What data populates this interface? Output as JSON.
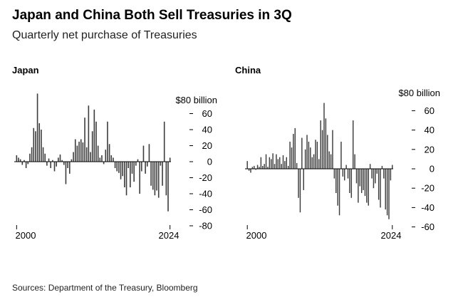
{
  "header": {
    "title": "Japan and China Both Sell Treasuries in 3Q",
    "subtitle": "Quarterly net purchase of Treasuries"
  },
  "footer": {
    "source": "Sources: Department of the Treasury, Bloomberg"
  },
  "colors": {
    "bar": "#3c3c3c",
    "zero_line": "#000000",
    "text": "#000000"
  },
  "chart_data": [
    {
      "type": "bar",
      "panel_title": "Japan",
      "unit_label": "$80 billion",
      "ylim": [
        -80,
        80
      ],
      "yticks": [
        60,
        40,
        20,
        0,
        -20,
        -40,
        -60,
        -80
      ],
      "xlabels": [
        "2000",
        "2024"
      ],
      "values": [
        8,
        5,
        3,
        -4,
        2,
        -8,
        -3,
        10,
        18,
        42,
        38,
        85,
        48,
        40,
        18,
        10,
        -5,
        4,
        -8,
        2,
        -12,
        -6,
        5,
        9,
        2,
        -4,
        -28,
        -8,
        -15,
        3,
        12,
        28,
        20,
        25,
        28,
        24,
        55,
        18,
        70,
        12,
        38,
        65,
        50,
        20,
        5,
        8,
        -3,
        15,
        50,
        22,
        8,
        5,
        -8,
        -12,
        -14,
        -22,
        -18,
        -32,
        -42,
        -8,
        -32,
        -15,
        -25,
        -5,
        3,
        -40,
        -12,
        20,
        -15,
        -6,
        22,
        -30,
        -35,
        -42,
        -36,
        -45,
        -5,
        -30,
        50,
        -42,
        -62,
        5
      ]
    },
    {
      "type": "bar",
      "panel_title": "China",
      "unit_label": "$80 billion",
      "ylim": [
        -60,
        70
      ],
      "yticks": [
        60,
        40,
        20,
        0,
        -20,
        -40,
        -60
      ],
      "xlabels": [
        "2000",
        "2024"
      ],
      "values": [
        8,
        -2,
        -4,
        2,
        3,
        -1,
        4,
        2,
        12,
        3,
        5,
        15,
        2,
        12,
        10,
        16,
        5,
        15,
        10,
        12,
        5,
        14,
        8,
        12,
        3,
        28,
        22,
        36,
        42,
        6,
        -30,
        -45,
        32,
        -22,
        20,
        35,
        28,
        22,
        12,
        15,
        30,
        28,
        10,
        50,
        40,
        68,
        52,
        35,
        18,
        15,
        40,
        -10,
        -25,
        -38,
        -48,
        28,
        -8,
        -12,
        4,
        -10,
        -25,
        -30,
        50,
        15,
        -15,
        -35,
        -18,
        -25,
        -22,
        -28,
        -35,
        -38,
        5,
        -10,
        -20,
        -15,
        -5,
        -32,
        -40,
        3,
        -10,
        -42,
        -48,
        -52,
        -12,
        4
      ]
    }
  ]
}
